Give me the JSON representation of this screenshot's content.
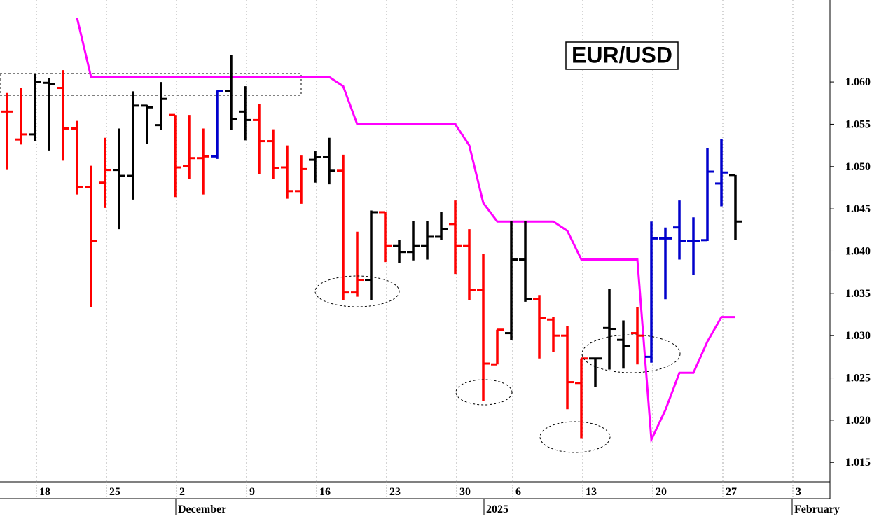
{
  "chart_data": {
    "type": "ohlc",
    "title": "EUR/USD",
    "categories": [
      null,
      null,
      "18",
      null,
      null,
      null,
      null,
      "25",
      null,
      null,
      null,
      null,
      "2",
      null,
      null,
      null,
      null,
      "9",
      null,
      null,
      null,
      null,
      "16",
      null,
      null,
      null,
      null,
      "23",
      null,
      null,
      null,
      null,
      "30",
      null,
      null,
      null,
      "6",
      null,
      null,
      null,
      null,
      "13",
      null,
      null,
      null,
      null,
      "20",
      null,
      null,
      null,
      null,
      "27",
      null,
      null,
      null,
      null,
      "3"
    ],
    "months": [
      null,
      null,
      null,
      null,
      null,
      null,
      null,
      null,
      null,
      null,
      null,
      null,
      "December",
      null,
      null,
      null,
      null,
      null,
      null,
      null,
      null,
      null,
      null,
      null,
      null,
      null,
      null,
      null,
      null,
      null,
      null,
      null,
      null,
      null,
      "2025",
      null,
      null,
      null,
      null,
      null,
      null,
      null,
      null,
      null,
      null,
      null,
      null,
      null,
      null,
      null,
      null,
      null,
      null,
      null,
      null,
      null,
      "February"
    ],
    "open": [
      1.0565,
      1.0532,
      1.0538,
      1.0599,
      1.0593,
      1.0545,
      1.0476,
      1.0481,
      1.0496,
      1.0489,
      1.0572,
      1.0549,
      1.0561,
      1.0501,
      1.051,
      1.0512,
      1.0589,
      1.0565,
      1.0555,
      1.053,
      1.0499,
      1.0471,
      1.0508,
      1.0511,
      1.0495,
      1.0351,
      1.0366,
      1.0446,
      1.0406,
      1.0399,
      1.0406,
      1.0417,
      1.0432,
      1.0406,
      1.0354,
      1.0266,
      1.0303,
      1.039,
      1.0343,
      1.0319,
      1.03,
      1.0244,
      1.0273,
      1.0309,
      1.0295,
      1.0303,
      1.0275,
      1.0415,
      1.0428,
      1.0412,
      1.0413,
      1.048,
      1.049,
      null,
      null,
      null,
      null
    ],
    "high": [
      1.0587,
      1.0593,
      1.061,
      1.0605,
      1.0614,
      1.0554,
      1.0501,
      1.0534,
      1.0545,
      1.0589,
      1.0573,
      1.06,
      1.0561,
      1.0561,
      1.0545,
      1.059,
      1.0632,
      1.0595,
      1.0574,
      1.0544,
      1.0525,
      1.0513,
      1.0518,
      1.0534,
      1.0514,
      1.0423,
      1.0448,
      1.0446,
      1.0413,
      1.0436,
      1.0436,
      1.0446,
      1.046,
      1.0426,
      1.0397,
      1.0307,
      1.0436,
      1.0436,
      1.0348,
      1.0322,
      1.0311,
      1.0273,
      1.0273,
      1.0355,
      1.0318,
      1.0334,
      1.0435,
      1.0428,
      1.046,
      1.044,
      1.0522,
      1.0533,
      1.049,
      null,
      null,
      null,
      null
    ],
    "low": [
      1.0496,
      1.0526,
      1.053,
      1.0519,
      1.0507,
      1.0467,
      1.0334,
      1.0451,
      1.0426,
      1.0461,
      1.0527,
      1.0543,
      1.0464,
      1.0485,
      1.0467,
      1.0509,
      1.0543,
      1.0531,
      1.0491,
      1.0485,
      1.0462,
      1.0456,
      1.0481,
      1.0479,
      1.0342,
      1.0346,
      1.0342,
      1.0387,
      1.0386,
      1.0389,
      1.039,
      1.0413,
      1.0373,
      1.0342,
      1.0223,
      1.0266,
      1.0295,
      1.034,
      1.0273,
      1.0281,
      1.0213,
      1.0178,
      1.0239,
      1.026,
      1.0261,
      1.0266,
      1.0268,
      1.0343,
      1.039,
      1.0372,
      1.0412,
      1.0453,
      1.0413,
      null,
      null,
      null,
      null
    ],
    "close": [
      1.0565,
      1.0538,
      1.06,
      1.0598,
      1.0545,
      1.0476,
      1.0412,
      1.0496,
      1.0489,
      1.0572,
      1.057,
      1.058,
      1.0499,
      1.051,
      1.0512,
      1.0589,
      1.0556,
      1.0555,
      1.053,
      1.0498,
      1.0471,
      1.0497,
      1.0511,
      1.0495,
      1.0351,
      1.0366,
      1.0446,
      1.0406,
      1.0399,
      1.0406,
      1.0417,
      1.0426,
      1.0406,
      1.0354,
      1.0267,
      1.0307,
      1.039,
      1.0343,
      1.0321,
      1.03,
      1.0245,
      1.0273,
      1.0273,
      1.0308,
      1.0288,
      1.03,
      1.0415,
      1.0415,
      1.0412,
      1.0412,
      1.0494,
      1.0493,
      1.0435,
      null,
      null,
      null,
      null
    ],
    "bar_colors": [
      "#ff0000",
      "#ff0000",
      "#000000",
      "#000000",
      "#ff0000",
      "#ff0000",
      "#ff0000",
      "#ff0000",
      "#000000",
      "#000000",
      "#000000",
      "#000000",
      "#ff0000",
      "#ff0000",
      "#ff0000",
      "#0000cc",
      "#000000",
      "#000000",
      "#ff0000",
      "#ff0000",
      "#ff0000",
      "#ff0000",
      "#000000",
      "#000000",
      "#ff0000",
      "#ff0000",
      "#000000",
      "#ff0000",
      "#000000",
      "#000000",
      "#000000",
      "#000000",
      "#ff0000",
      "#ff0000",
      "#ff0000",
      "#ff0000",
      "#000000",
      "#000000",
      "#ff0000",
      "#ff0000",
      "#ff0000",
      "#ff0000",
      "#000000",
      "#000000",
      "#000000",
      "#ff0000",
      "#0000cc",
      "#0000cc",
      "#0000cc",
      "#0000cc",
      "#0000cc",
      "#0000cc",
      "#000000",
      null,
      null,
      null,
      null
    ],
    "stop_line": {
      "color": "#ff00ff",
      "values": [
        null,
        null,
        null,
        null,
        null,
        1.0676,
        1.0606,
        1.0606,
        1.0606,
        1.0606,
        1.0606,
        1.0606,
        1.0606,
        1.0606,
        1.0606,
        1.0606,
        1.0606,
        1.0606,
        1.0606,
        1.0606,
        1.0606,
        1.0606,
        1.0606,
        1.0606,
        1.0595,
        1.055,
        1.055,
        1.055,
        1.055,
        1.055,
        1.055,
        1.055,
        1.055,
        1.0525,
        1.0457,
        1.0435,
        1.0435,
        1.0435,
        1.0435,
        1.0435,
        1.0424,
        1.039,
        1.039,
        1.039,
        1.039,
        1.039,
        1.0177,
        1.0212,
        1.0256,
        1.0256,
        1.0293,
        1.0322,
        1.0322,
        null,
        null,
        null,
        null
      ]
    },
    "ylim": [
      1.0127,
      1.0697
    ],
    "yticks": [
      1.015,
      {
        "value": 1.02,
        "label": "1.020"
      },
      1.025,
      {
        "value": 1.03,
        "label": "1.030"
      },
      1.035,
      {
        "value": 1.04,
        "label": "1.040"
      },
      1.045,
      {
        "value": 1.05,
        "label": "1.050"
      },
      1.055,
      {
        "value": 1.06,
        "label": "1.060"
      }
    ],
    "grid": true
  }
}
